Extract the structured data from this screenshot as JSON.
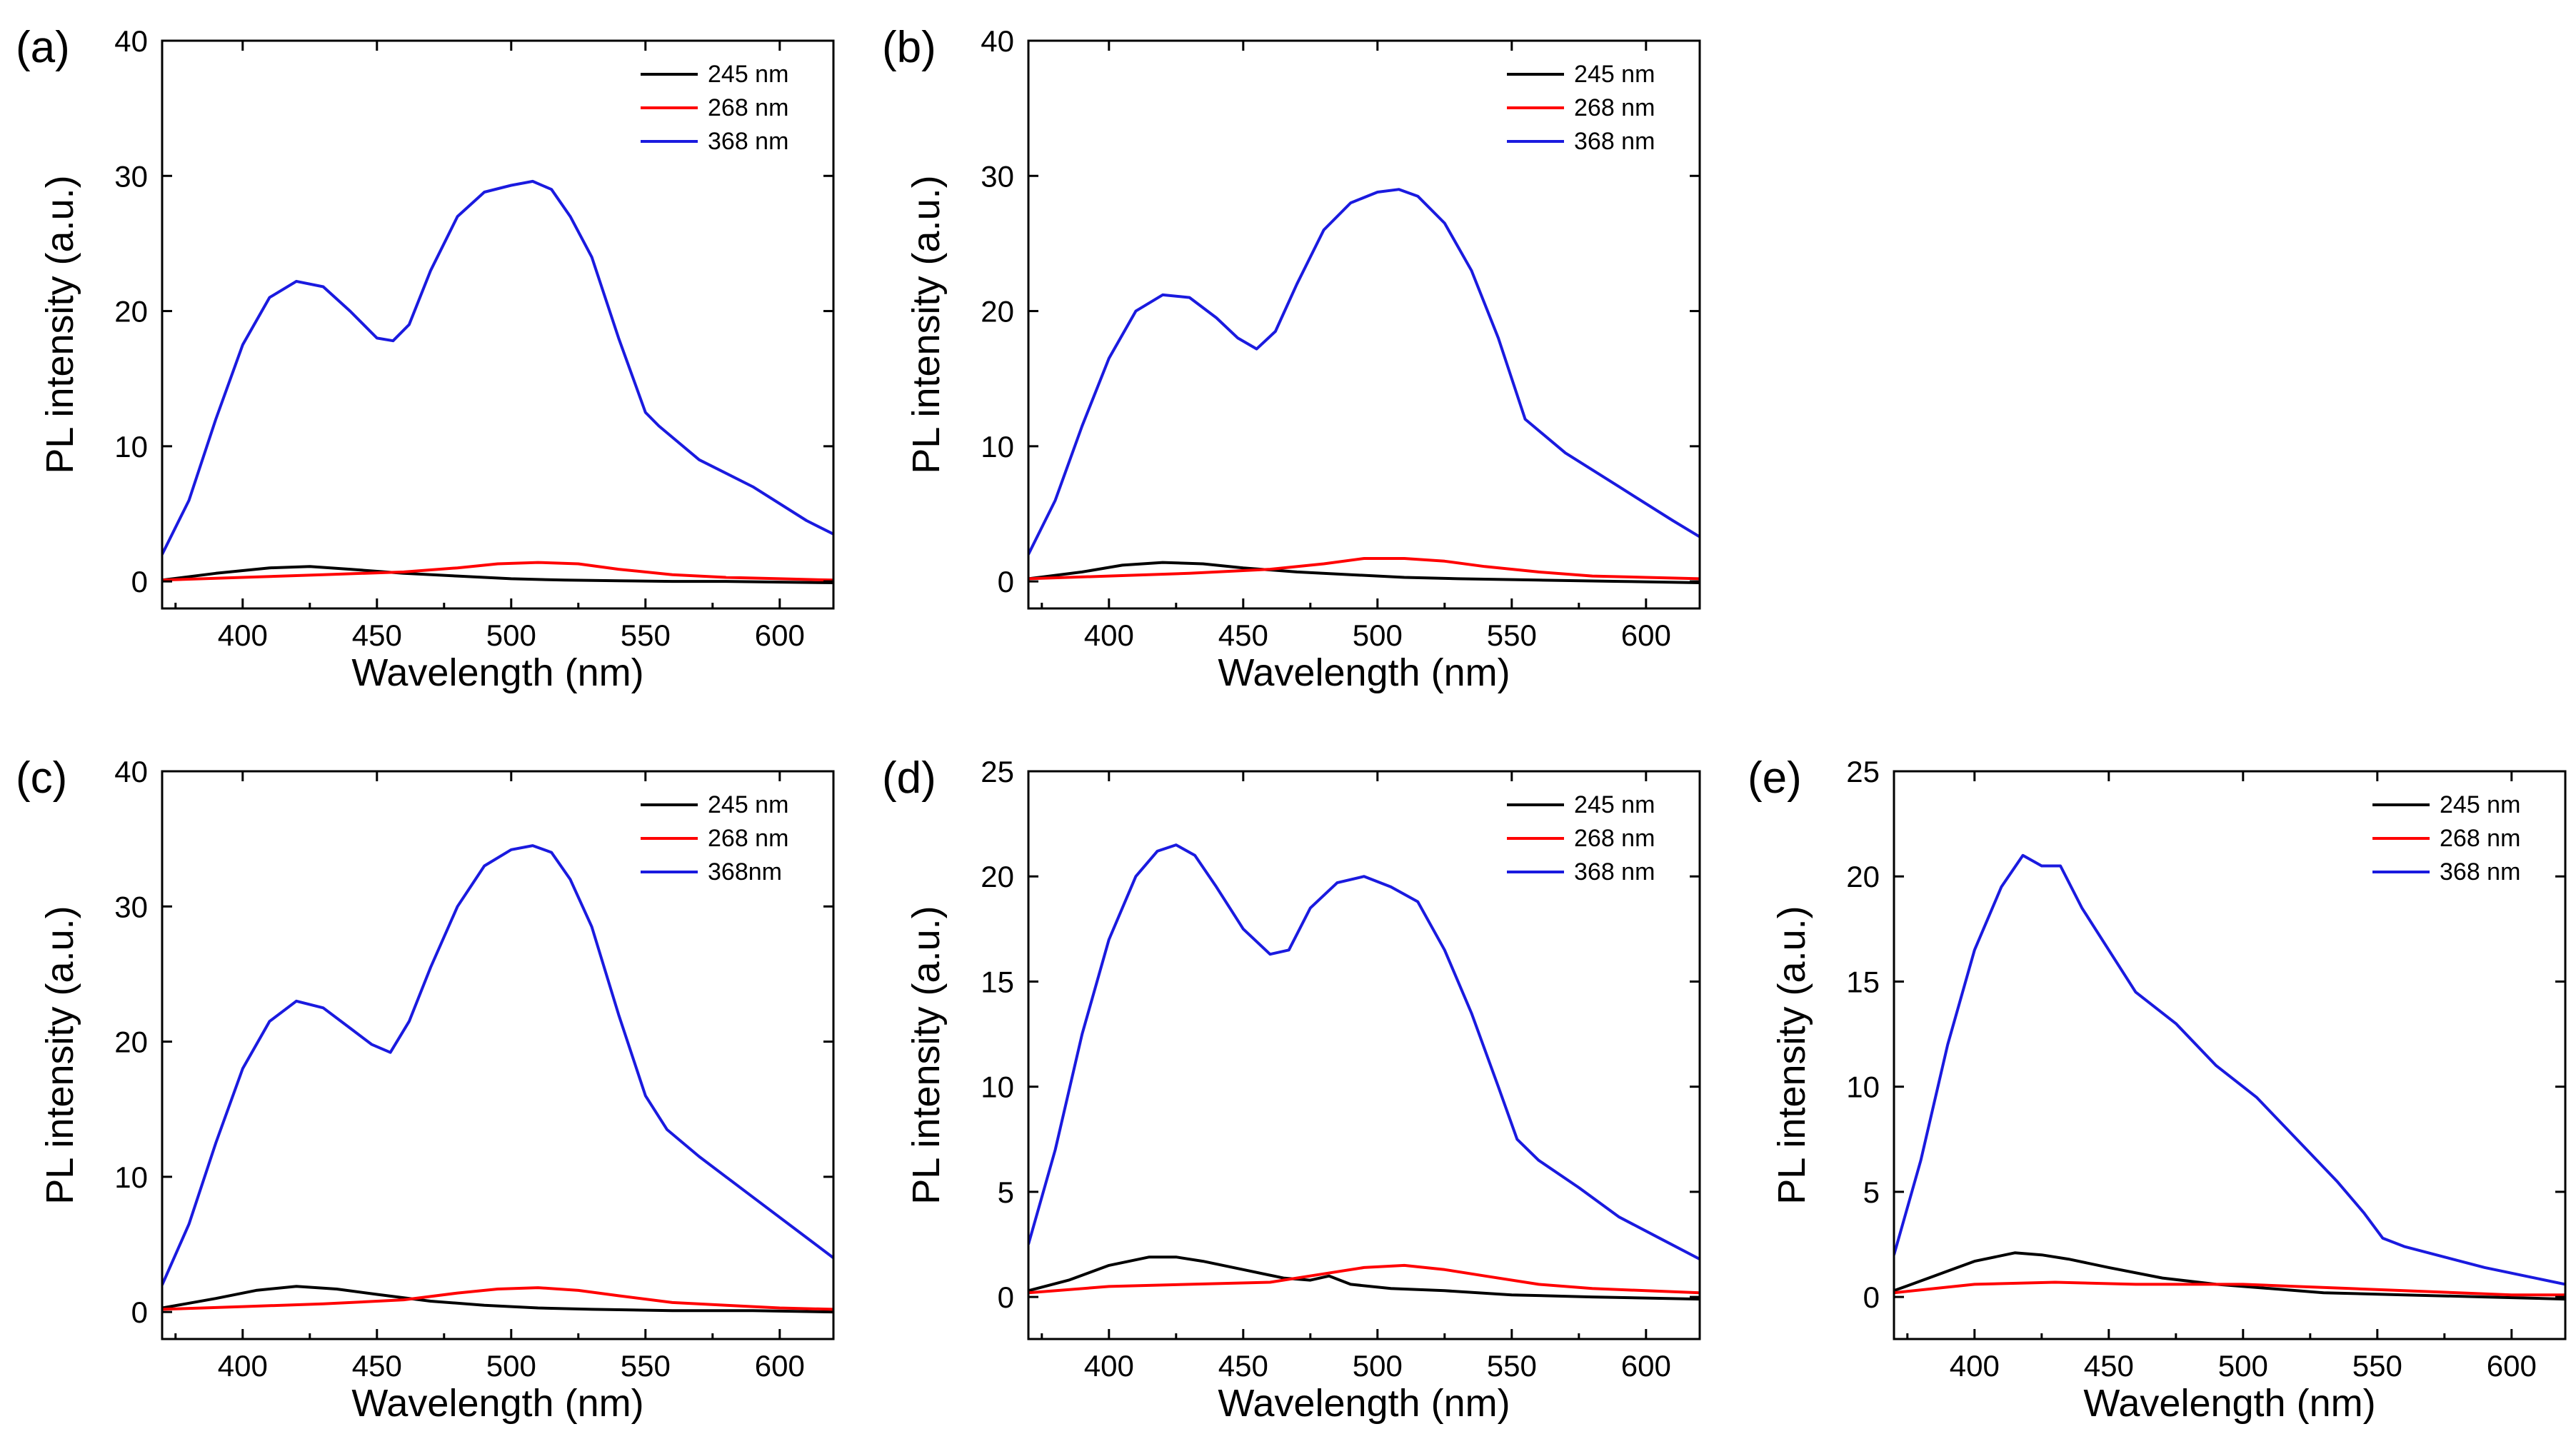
{
  "chart_data": [
    {
      "panel": "(a)",
      "type": "line",
      "xlabel": "Wavelength (nm)",
      "ylabel": "PL intensity (a.u.)",
      "xlim": [
        370,
        620
      ],
      "ylim": [
        -2,
        40
      ],
      "xticks": [
        400,
        450,
        500,
        550,
        600
      ],
      "yticks": [
        0,
        10,
        20,
        30,
        40
      ],
      "legend_position": "top-right",
      "series": [
        {
          "name": "245 nm",
          "color": "#000000",
          "x": [
            370,
            390,
            410,
            425,
            440,
            460,
            480,
            500,
            520,
            540,
            560,
            580,
            600,
            620
          ],
          "y": [
            0.1,
            0.6,
            1.0,
            1.1,
            0.9,
            0.6,
            0.4,
            0.2,
            0.1,
            0.05,
            0.0,
            0.0,
            -0.05,
            -0.1
          ]
        },
        {
          "name": "268 nm",
          "color": "#ff0000",
          "x": [
            370,
            400,
            430,
            460,
            480,
            495,
            510,
            525,
            540,
            560,
            580,
            600,
            620
          ],
          "y": [
            0.1,
            0.3,
            0.5,
            0.7,
            1.0,
            1.3,
            1.4,
            1.3,
            0.9,
            0.5,
            0.3,
            0.2,
            0.1
          ]
        },
        {
          "name": "368 nm",
          "color": "#1a1adf",
          "x": [
            370,
            380,
            390,
            400,
            410,
            420,
            430,
            440,
            450,
            456,
            462,
            470,
            480,
            490,
            500,
            508,
            515,
            522,
            530,
            540,
            550,
            555,
            570,
            590,
            610,
            620
          ],
          "y": [
            2.0,
            6.0,
            12.0,
            17.5,
            21.0,
            22.2,
            21.8,
            20.0,
            18.0,
            17.8,
            19.0,
            23.0,
            27.0,
            28.8,
            29.3,
            29.6,
            29.0,
            27.0,
            24.0,
            18.0,
            12.5,
            11.5,
            9.0,
            7.0,
            4.5,
            3.5
          ]
        }
      ]
    },
    {
      "panel": "(b)",
      "type": "line",
      "xlabel": "Wavelength (nm)",
      "ylabel": "PL intensity (a.u.)",
      "xlim": [
        370,
        620
      ],
      "ylim": [
        -2,
        40
      ],
      "xticks": [
        400,
        450,
        500,
        550,
        600
      ],
      "yticks": [
        0,
        10,
        20,
        30,
        40
      ],
      "legend_position": "top-right",
      "series": [
        {
          "name": "245 nm",
          "color": "#000000",
          "x": [
            370,
            390,
            405,
            420,
            435,
            450,
            470,
            490,
            510,
            530,
            560,
            590,
            620
          ],
          "y": [
            0.2,
            0.7,
            1.2,
            1.4,
            1.3,
            1.0,
            0.7,
            0.5,
            0.3,
            0.2,
            0.1,
            0.0,
            -0.1
          ]
        },
        {
          "name": "268 nm",
          "color": "#ff0000",
          "x": [
            370,
            400,
            430,
            460,
            480,
            495,
            510,
            525,
            540,
            560,
            580,
            600,
            620
          ],
          "y": [
            0.2,
            0.4,
            0.6,
            0.9,
            1.3,
            1.7,
            1.7,
            1.5,
            1.1,
            0.7,
            0.4,
            0.3,
            0.2
          ]
        },
        {
          "name": "368 nm",
          "color": "#1a1adf",
          "x": [
            370,
            380,
            390,
            400,
            410,
            420,
            430,
            440,
            448,
            455,
            462,
            470,
            480,
            490,
            500,
            508,
            515,
            525,
            535,
            545,
            555,
            570,
            590,
            610,
            620
          ],
          "y": [
            2.0,
            6.0,
            11.5,
            16.5,
            20.0,
            21.2,
            21.0,
            19.5,
            18.0,
            17.2,
            18.5,
            22.0,
            26.0,
            28.0,
            28.8,
            29.0,
            28.5,
            26.5,
            23.0,
            18.0,
            12.0,
            9.5,
            7.0,
            4.5,
            3.3
          ]
        }
      ]
    },
    {
      "panel": "(c)",
      "type": "line",
      "xlabel": "Wavelength (nm)",
      "ylabel": "PL intensity (a.u.)",
      "xlim": [
        370,
        620
      ],
      "ylim": [
        -2,
        40
      ],
      "xticks": [
        400,
        450,
        500,
        550,
        600
      ],
      "yticks": [
        0,
        10,
        20,
        30,
        40
      ],
      "legend_position": "top-right",
      "series": [
        {
          "name": "245 nm",
          "color": "#000000",
          "x": [
            370,
            390,
            405,
            420,
            435,
            450,
            470,
            490,
            510,
            530,
            560,
            590,
            620
          ],
          "y": [
            0.3,
            1.0,
            1.6,
            1.9,
            1.7,
            1.3,
            0.8,
            0.5,
            0.3,
            0.2,
            0.1,
            0.1,
            0.0
          ]
        },
        {
          "name": "268 nm",
          "color": "#ff0000",
          "x": [
            370,
            400,
            430,
            460,
            480,
            495,
            510,
            525,
            540,
            560,
            580,
            600,
            620
          ],
          "y": [
            0.2,
            0.4,
            0.6,
            0.9,
            1.4,
            1.7,
            1.8,
            1.6,
            1.2,
            0.7,
            0.5,
            0.3,
            0.2
          ]
        },
        {
          "name": "368nm",
          "color": "#1a1adf",
          "x": [
            370,
            380,
            390,
            400,
            410,
            420,
            430,
            440,
            448,
            455,
            462,
            470,
            480,
            490,
            500,
            508,
            515,
            522,
            530,
            540,
            550,
            558,
            570,
            590,
            610,
            620
          ],
          "y": [
            2.0,
            6.5,
            12.5,
            18.0,
            21.5,
            23.0,
            22.5,
            21.0,
            19.8,
            19.2,
            21.5,
            25.5,
            30.0,
            33.0,
            34.2,
            34.5,
            34.0,
            32.0,
            28.5,
            22.0,
            16.0,
            13.5,
            11.5,
            8.5,
            5.5,
            4.0
          ]
        }
      ]
    },
    {
      "panel": "(d)",
      "type": "line",
      "xlabel": "Wavelength (nm)",
      "ylabel": "PL intensity (a.u.)",
      "xlim": [
        370,
        620
      ],
      "ylim": [
        -2,
        25
      ],
      "xticks": [
        400,
        450,
        500,
        550,
        600
      ],
      "yticks": [
        0,
        5,
        10,
        15,
        20,
        25
      ],
      "legend_position": "top-right",
      "series": [
        {
          "name": "245 nm",
          "color": "#000000",
          "x": [
            370,
            385,
            400,
            415,
            425,
            435,
            450,
            465,
            475,
            482,
            490,
            505,
            525,
            550,
            580,
            620
          ],
          "y": [
            0.3,
            0.8,
            1.5,
            1.9,
            1.9,
            1.7,
            1.3,
            0.9,
            0.8,
            1.0,
            0.6,
            0.4,
            0.3,
            0.1,
            0.0,
            -0.1
          ]
        },
        {
          "name": "268 nm",
          "color": "#ff0000",
          "x": [
            370,
            400,
            430,
            460,
            480,
            495,
            510,
            525,
            540,
            560,
            580,
            600,
            620
          ],
          "y": [
            0.2,
            0.5,
            0.6,
            0.7,
            1.1,
            1.4,
            1.5,
            1.3,
            1.0,
            0.6,
            0.4,
            0.3,
            0.2
          ]
        },
        {
          "name": "368 nm",
          "color": "#1a1adf",
          "x": [
            370,
            380,
            390,
            400,
            410,
            418,
            425,
            432,
            440,
            450,
            460,
            467,
            475,
            485,
            495,
            505,
            515,
            525,
            535,
            545,
            552,
            560,
            575,
            590,
            605,
            620
          ],
          "y": [
            2.5,
            7.0,
            12.5,
            17.0,
            20.0,
            21.2,
            21.5,
            21.0,
            19.5,
            17.5,
            16.3,
            16.5,
            18.5,
            19.7,
            20.0,
            19.5,
            18.8,
            16.5,
            13.5,
            10.0,
            7.5,
            6.5,
            5.2,
            3.8,
            2.8,
            1.8
          ]
        }
      ]
    },
    {
      "panel": "(e)",
      "type": "line",
      "xlabel": "Wavelength (nm)",
      "ylabel": "PL intensity (a.u.)",
      "xlim": [
        370,
        620
      ],
      "ylim": [
        -2,
        25
      ],
      "xticks": [
        400,
        450,
        500,
        550,
        600
      ],
      "yticks": [
        0,
        5,
        10,
        15,
        20,
        25
      ],
      "legend_position": "top-right",
      "series": [
        {
          "name": "245 nm",
          "color": "#000000",
          "x": [
            370,
            385,
            400,
            415,
            425,
            435,
            450,
            470,
            490,
            510,
            530,
            560,
            590,
            620
          ],
          "y": [
            0.3,
            1.0,
            1.7,
            2.1,
            2.0,
            1.8,
            1.4,
            0.9,
            0.6,
            0.4,
            0.2,
            0.1,
            0.0,
            -0.1
          ]
        },
        {
          "name": "268 nm",
          "color": "#ff0000",
          "x": [
            370,
            400,
            430,
            460,
            480,
            500,
            520,
            540,
            560,
            580,
            600,
            620
          ],
          "y": [
            0.2,
            0.6,
            0.7,
            0.6,
            0.6,
            0.6,
            0.5,
            0.4,
            0.3,
            0.2,
            0.1,
            0.1
          ]
        },
        {
          "name": "368 nm",
          "color": "#1a1adf",
          "x": [
            370,
            380,
            390,
            400,
            410,
            418,
            425,
            432,
            440,
            450,
            460,
            475,
            490,
            505,
            520,
            535,
            545,
            552,
            560,
            575,
            590,
            605,
            620
          ],
          "y": [
            2.0,
            6.5,
            12.0,
            16.5,
            19.5,
            21.0,
            20.5,
            20.5,
            18.5,
            16.5,
            14.5,
            13.0,
            11.0,
            9.5,
            7.5,
            5.5,
            4.0,
            2.8,
            2.4,
            1.9,
            1.4,
            1.0,
            0.6
          ]
        }
      ]
    }
  ]
}
